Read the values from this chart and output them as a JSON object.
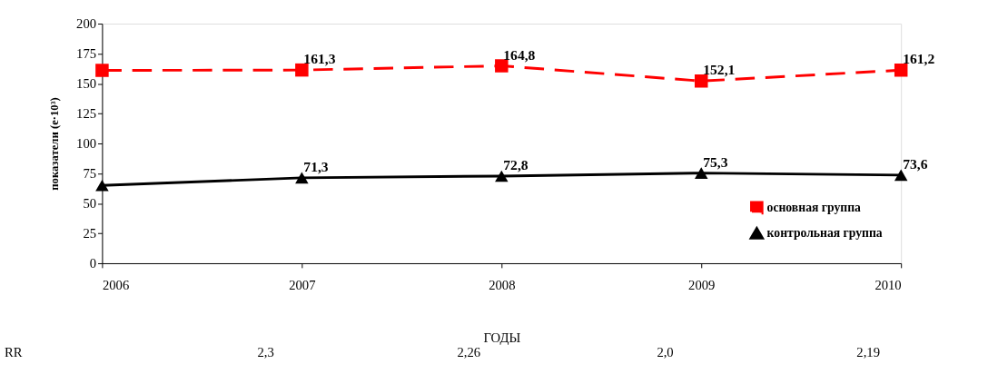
{
  "chart_data": {
    "type": "line",
    "xlabel": "ГОДЫ",
    "ylabel": "показатели (е·10³)",
    "categories": [
      "2006",
      "2007",
      "2008",
      "2009",
      "2010"
    ],
    "series": [
      {
        "name": "основная группа",
        "color": "#ff0000",
        "marker": "square",
        "line_style": "dashed",
        "values": [
          161,
          161.3,
          164.8,
          152.1,
          161.2
        ],
        "value_labels": [
          null,
          "161,3",
          "164,8",
          "152,1",
          "161,2"
        ]
      },
      {
        "name": "контрольная группа",
        "color": "#000000",
        "marker": "triangle",
        "line_style": "solid",
        "values": [
          65,
          71.3,
          72.8,
          75.3,
          73.6
        ],
        "value_labels": [
          null,
          "71,3",
          "72,8",
          "75,3",
          "73,6"
        ]
      }
    ],
    "ylim": [
      0,
      200
    ],
    "yticks": [
      0,
      25,
      50,
      75,
      100,
      125,
      150,
      175,
      200
    ],
    "grid": false,
    "legend": "bottom right",
    "annotations": [
      "RR",
      "2,3",
      "2,26",
      "2,0",
      "2,19"
    ]
  }
}
